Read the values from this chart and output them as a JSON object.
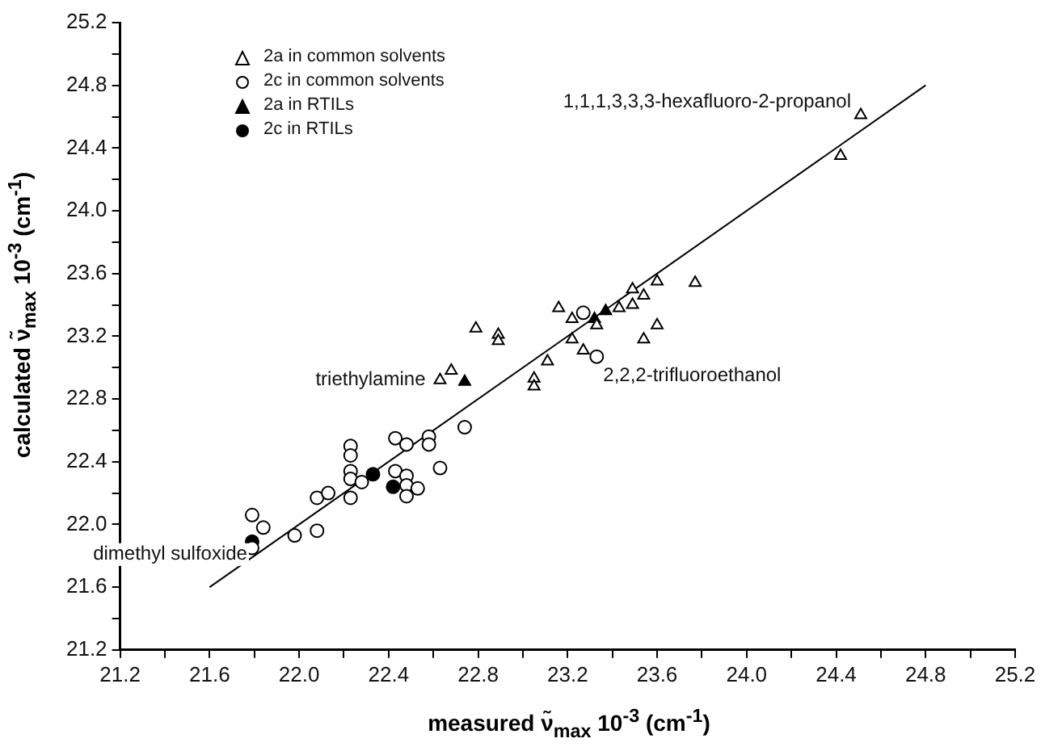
{
  "chart_data": {
    "type": "scatter",
    "xlabel": "measured ν̃$_{max}$ 10$^{-3}$ (cm$^{-1}$)",
    "ylabel": "calculated ν̃$_{max}$ 10$^{-3}$ (cm$^{-1}$)",
    "xlim": [
      21.2,
      25.2
    ],
    "ylim": [
      21.2,
      25.2
    ],
    "xticks": [
      {
        "value": 21.2,
        "label": "21.2"
      },
      {
        "value": 21.4,
        "label": null
      },
      {
        "value": 21.6,
        "label": "21.6"
      },
      {
        "value": 21.8,
        "label": null
      },
      {
        "value": 22,
        "label": "22.0"
      },
      {
        "value": 22.2,
        "label": null
      },
      {
        "value": 22.4,
        "label": "22.4"
      },
      {
        "value": 22.6,
        "label": null
      },
      {
        "value": 22.8,
        "label": "22.8"
      },
      {
        "value": 23,
        "label": null
      },
      {
        "value": 23.2,
        "label": "23.2"
      },
      {
        "value": 23.4,
        "label": null
      },
      {
        "value": 23.6,
        "label": "23.6"
      },
      {
        "value": 23.8,
        "label": null
      },
      {
        "value": 24,
        "label": "24.0"
      },
      {
        "value": 24.2,
        "label": null
      },
      {
        "value": 24.4,
        "label": "24.4"
      },
      {
        "value": 24.6,
        "label": null
      },
      {
        "value": 24.8,
        "label": "24.8"
      },
      {
        "value": 25,
        "label": null
      },
      {
        "value": 25.2,
        "label": "25.2"
      }
    ],
    "yticks": [
      {
        "value": 21.2,
        "label": "21.2"
      },
      {
        "value": 21.4,
        "label": null
      },
      {
        "value": 21.6,
        "label": "21.6"
      },
      {
        "value": 21.8,
        "label": null
      },
      {
        "value": 22,
        "label": "22.0"
      },
      {
        "value": 22.2,
        "label": null
      },
      {
        "value": 22.4,
        "label": "22.4"
      },
      {
        "value": 22.6,
        "label": null
      },
      {
        "value": 22.8,
        "label": "22.8"
      },
      {
        "value": 23,
        "label": null
      },
      {
        "value": 23.2,
        "label": "23.2"
      },
      {
        "value": 23.4,
        "label": null
      },
      {
        "value": 23.6,
        "label": "23.6"
      },
      {
        "value": 23.8,
        "label": null
      },
      {
        "value": 24,
        "label": "24.0"
      },
      {
        "value": 24.2,
        "label": null
      },
      {
        "value": 24.4,
        "label": "24.4"
      },
      {
        "value": 24.6,
        "label": null
      },
      {
        "value": 24.8,
        "label": "24.8"
      },
      {
        "value": 25,
        "label": null
      },
      {
        "value": 25.2,
        "label": "25.2"
      }
    ],
    "grid": false,
    "legend": "top left",
    "series": [
      {
        "name": "2a in common solvents",
        "marker": "triangle",
        "color": "#ffffff",
        "x": [
          22.63,
          22.68,
          22.79,
          22.89,
          22.89,
          23.05,
          23.05,
          23.11,
          23.16,
          23.22,
          23.22,
          23.27,
          23.33,
          23.43,
          23.49,
          23.49,
          23.54,
          23.54,
          23.6,
          23.6,
          23.77,
          24.42,
          24.51
        ],
        "values": [
          22.92,
          22.98,
          23.25,
          23.21,
          23.17,
          22.93,
          22.88,
          23.04,
          23.38,
          23.31,
          23.18,
          23.11,
          23.27,
          23.38,
          23.5,
          23.4,
          23.46,
          23.18,
          23.55,
          23.27,
          23.54,
          24.35,
          24.61
        ]
      },
      {
        "name": "2c in common solvents",
        "marker": "circle",
        "color": "#ffffff",
        "x": [
          21.79,
          21.79,
          21.84,
          21.98,
          22.08,
          22.08,
          22.13,
          22.23,
          22.23,
          22.23,
          22.23,
          22.23,
          22.28,
          22.43,
          22.43,
          22.48,
          22.48,
          22.48,
          22.48,
          22.53,
          22.58,
          22.58,
          22.63,
          22.74,
          23.27,
          23.33
        ],
        "values": [
          22.06,
          21.85,
          21.98,
          21.93,
          21.96,
          22.17,
          22.2,
          22.5,
          22.44,
          22.34,
          22.29,
          22.17,
          22.27,
          22.55,
          22.34,
          22.51,
          22.31,
          22.25,
          22.18,
          22.23,
          22.56,
          22.51,
          22.36,
          22.62,
          23.35,
          23.07
        ]
      },
      {
        "name": "2a in RTILs",
        "marker": "triangle",
        "color": "#000000",
        "x": [
          22.74,
          23.32,
          23.37
        ],
        "values": [
          22.91,
          23.31,
          23.36
        ]
      },
      {
        "name": "2c in RTILs",
        "marker": "circle",
        "color": "#000000",
        "x": [
          21.79,
          22.33,
          22.42
        ],
        "values": [
          21.89,
          22.32,
          22.24
        ]
      },
      {
        "type": "line",
        "marker": "none",
        "color": "#000000",
        "x": [
          21.6,
          24.8
        ],
        "values": [
          21.6,
          24.8
        ]
      }
    ],
    "annotations": [
      {
        "text": "1,1,1,3,3,3-hexafluoro-2-propanol",
        "x": 24.51,
        "y": 24.61
      },
      {
        "text": "triethylamine",
        "x": 22.63,
        "y": 22.92
      },
      {
        "text": "2,2,2-trifluoroethanol",
        "x": 23.33,
        "y": 23.07
      },
      {
        "text": "dimethyl sulfoxide",
        "x": 21.79,
        "y": 21.89
      }
    ]
  }
}
